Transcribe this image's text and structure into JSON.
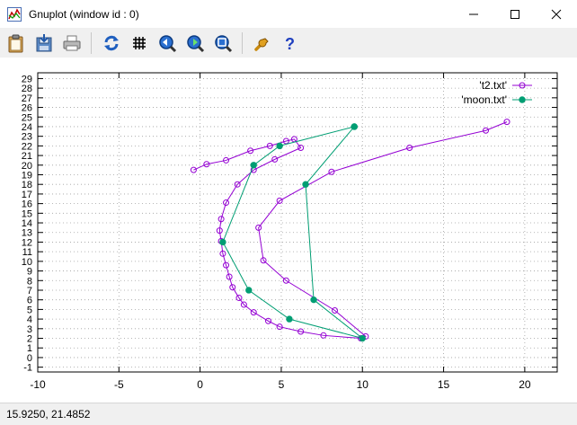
{
  "window": {
    "title": "Gnuplot (window id : 0)"
  },
  "toolbar": {
    "buttons": [
      {
        "name": "copy-to-clipboard-icon"
      },
      {
        "name": "save-icon"
      },
      {
        "name": "print-icon"
      },
      {
        "name": "replot-icon"
      },
      {
        "name": "grid-icon"
      },
      {
        "name": "previous-zoom-icon"
      },
      {
        "name": "next-zoom-icon"
      },
      {
        "name": "autoscale-icon"
      },
      {
        "name": "options-icon"
      },
      {
        "name": "help-icon"
      }
    ]
  },
  "status": {
    "coordinates": "15.9250,  21.4852"
  },
  "chart_data": {
    "type": "line",
    "xlim": [
      -10,
      22
    ],
    "ylim": [
      -1.5,
      29.6
    ],
    "x_ticks": [
      "-10",
      "-5",
      "0",
      "5",
      "10",
      "15",
      "20"
    ],
    "y_ticks": [
      "-1",
      "0",
      "1",
      "2",
      "3",
      "4",
      "5",
      "6",
      "7",
      "8",
      "9",
      "10",
      "11",
      "12",
      "13",
      "14",
      "15",
      "16",
      "17",
      "18",
      "19",
      "20",
      "21",
      "22",
      "23",
      "24",
      "25",
      "26",
      "27",
      "28",
      "29"
    ],
    "grid": true,
    "legend_position": "top-right",
    "series": [
      {
        "name": "'t2.txt'",
        "color": "#9400d3",
        "marker": "open-circle",
        "points": [
          [
            18.9,
            24.5
          ],
          [
            17.6,
            23.6
          ],
          [
            12.9,
            21.8
          ],
          [
            8.1,
            19.3
          ],
          [
            4.9,
            16.3
          ],
          [
            3.6,
            13.5
          ],
          [
            3.9,
            10.1
          ],
          [
            5.3,
            8.0
          ],
          [
            8.3,
            4.9
          ],
          [
            10.2,
            2.2
          ],
          [
            9.9,
            2.0
          ],
          [
            7.6,
            2.3
          ],
          [
            6.2,
            2.7
          ],
          [
            4.9,
            3.2
          ],
          [
            4.2,
            3.8
          ],
          [
            3.3,
            4.7
          ],
          [
            2.7,
            5.5
          ],
          [
            2.4,
            6.2
          ],
          [
            2.0,
            7.3
          ],
          [
            1.8,
            8.4
          ],
          [
            1.6,
            9.6
          ],
          [
            1.4,
            10.8
          ],
          [
            1.3,
            12.1
          ],
          [
            1.2,
            13.2
          ],
          [
            1.3,
            14.4
          ],
          [
            1.6,
            16.1
          ],
          [
            2.3,
            18.0
          ],
          [
            3.3,
            19.5
          ],
          [
            4.6,
            20.6
          ],
          [
            6.2,
            21.8
          ],
          [
            5.8,
            22.7
          ],
          [
            5.3,
            22.5
          ],
          [
            4.3,
            22.0
          ],
          [
            3.1,
            21.5
          ],
          [
            1.6,
            20.5
          ],
          [
            0.4,
            20.1
          ],
          [
            -0.4,
            19.5
          ]
        ]
      },
      {
        "name": "'moon.txt'",
        "color": "#009e73",
        "marker": "filled-circle",
        "points": [
          [
            9.5,
            24.0
          ],
          [
            6.5,
            18.0
          ],
          [
            7.0,
            6.0
          ],
          [
            10.0,
            2.0
          ],
          [
            5.5,
            4.0
          ],
          [
            3.0,
            7.0
          ],
          [
            1.4,
            12.0
          ],
          [
            3.3,
            20.0
          ],
          [
            4.9,
            22.0
          ],
          [
            9.5,
            24.0
          ]
        ]
      }
    ]
  }
}
